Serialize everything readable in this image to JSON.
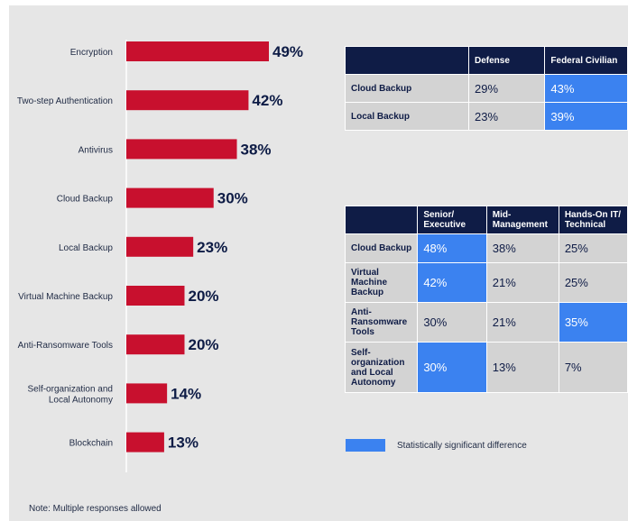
{
  "chart_data": [
    {
      "type": "bar",
      "orientation": "horizontal",
      "categories": [
        "Encryption",
        "Two-step Authentication",
        "Antivirus",
        "Cloud Backup",
        "Local Backup",
        "Virtual Machine Backup",
        "Anti-Ransomware Tools",
        "Self-organization and Local Autonomy",
        "Blockchain"
      ],
      "values": [
        49,
        42,
        38,
        30,
        23,
        20,
        20,
        14,
        13
      ],
      "value_labels": [
        "49%",
        "42%",
        "38%",
        "30%",
        "23%",
        "20%",
        "20%",
        "14%",
        "13%"
      ],
      "xlim": [
        0,
        60
      ],
      "grid": false,
      "bar_color": "#c8102e"
    },
    {
      "type": "table",
      "columns": [
        "",
        "Defense",
        "Federal Civilian"
      ],
      "rows": [
        {
          "label": "Cloud Backup",
          "cells": [
            {
              "text": "29%",
              "sig": false
            },
            {
              "text": "43%",
              "sig": true
            }
          ]
        },
        {
          "label": "Local Backup",
          "cells": [
            {
              "text": "23%",
              "sig": false
            },
            {
              "text": "39%",
              "sig": true
            }
          ]
        }
      ]
    },
    {
      "type": "table",
      "columns": [
        "",
        "Senior/ Executive",
        "Mid-Management",
        "Hands-On IT/ Technical"
      ],
      "rows": [
        {
          "label": "Cloud Backup",
          "cells": [
            {
              "text": "48%",
              "sig": true
            },
            {
              "text": "38%",
              "sig": false
            },
            {
              "text": "25%",
              "sig": false
            }
          ]
        },
        {
          "label": "Virtual Machine Backup",
          "cells": [
            {
              "text": "42%",
              "sig": true
            },
            {
              "text": "21%",
              "sig": false
            },
            {
              "text": "25%",
              "sig": false
            }
          ]
        },
        {
          "label": "Anti-Ransomware Tools",
          "cells": [
            {
              "text": "30%",
              "sig": false
            },
            {
              "text": "21%",
              "sig": false
            },
            {
              "text": "35%",
              "sig": true
            }
          ]
        },
        {
          "label": "Self-organization and Local Autonomy",
          "cells": [
            {
              "text": "30%",
              "sig": true
            },
            {
              "text": "13%",
              "sig": false
            },
            {
              "text": "7%",
              "sig": false
            }
          ]
        }
      ]
    }
  ],
  "legend": {
    "label": "Statistically significant difference",
    "color": "#3b82f0"
  },
  "note": "Note: Multiple responses allowed"
}
